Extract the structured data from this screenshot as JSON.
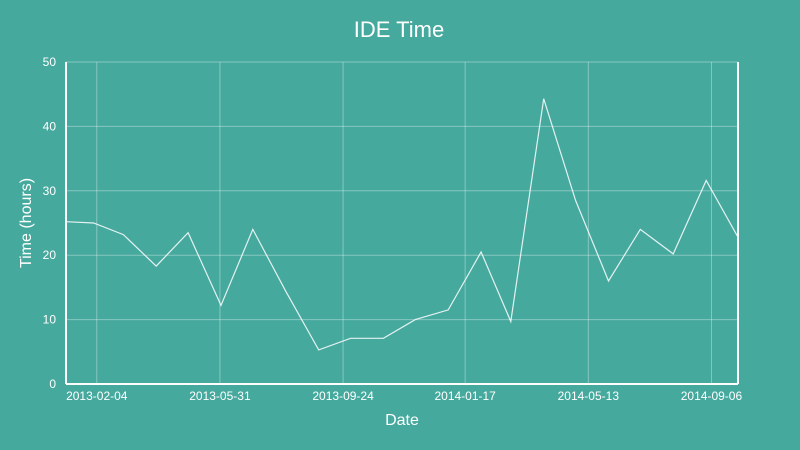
{
  "chart_data": {
    "type": "line",
    "title": "IDE Time",
    "xlabel": "Date",
    "ylabel": "Time (hours)",
    "ylim": [
      0,
      50
    ],
    "yticks": [
      0,
      10,
      20,
      30,
      40,
      50
    ],
    "xlim": [
      "2013-01-06",
      "2014-10-01"
    ],
    "xticks": [
      "2013-02-04",
      "2013-05-31",
      "2013-09-24",
      "2014-01-17",
      "2014-05-13",
      "2014-09-06"
    ],
    "grid": true,
    "colors": {
      "background": "#46a99e",
      "line": "#ffffff"
    },
    "series": [
      {
        "x": [
          "2013-01-06",
          "2013-02-01",
          "2013-03-01",
          "2013-04-01",
          "2013-05-01",
          "2013-06-01",
          "2013-07-01",
          "2013-08-01",
          "2013-09-01",
          "2013-10-01",
          "2013-11-01",
          "2013-12-01",
          "2014-01-01",
          "2014-02-01",
          "2014-03-01",
          "2014-04-01",
          "2014-05-01",
          "2014-06-01",
          "2014-07-01",
          "2014-08-01",
          "2014-09-01",
          "2014-10-01"
        ],
        "values": [
          25.2,
          25.0,
          23.2,
          18.3,
          23.5,
          12.2,
          24.0,
          14.4,
          5.3,
          7.1,
          7.1,
          10.0,
          11.5,
          20.5,
          9.7,
          44.3,
          28.5,
          16.0,
          24.0,
          20.2,
          31.6,
          22.8
        ]
      }
    ]
  }
}
